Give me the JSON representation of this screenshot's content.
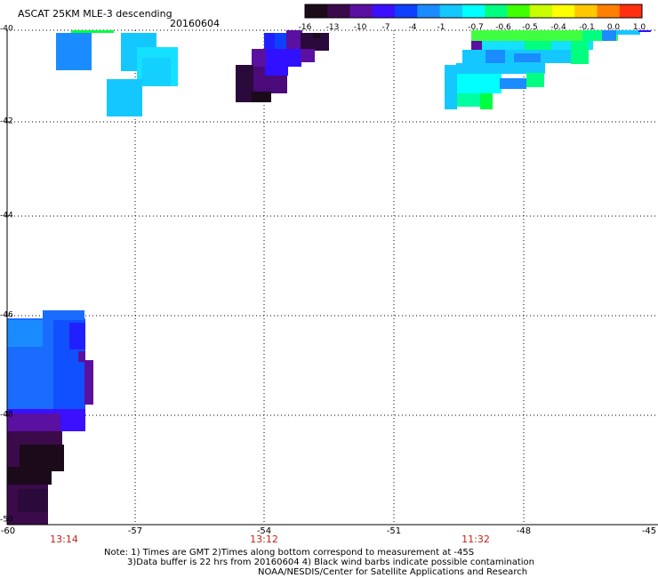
{
  "header": {
    "title": "ASCAT 25KM MLE-3 descending",
    "date": "20160604"
  },
  "colorbar": {
    "labels": [
      "-16",
      "-13",
      "-10",
      "-7",
      "-4",
      "-1",
      "-0.7",
      "-0.6",
      "-0.5",
      "-0.4",
      "-0.1",
      "0.0",
      "1.0"
    ],
    "colors": [
      "#1a0a1a",
      "#3b0a4a",
      "#5a10a0",
      "#3a10ff",
      "#1040ff",
      "#1a8cff",
      "#14c8ff",
      "#00ffff",
      "#00ff80",
      "#40ff00",
      "#c8ff00",
      "#ffff00",
      "#ffc800",
      "#ff8000",
      "#ff3010"
    ]
  },
  "map": {
    "lat_labels": [
      "-40",
      "-42",
      "-44",
      "-46",
      "-48",
      "-50"
    ],
    "lon_labels": [
      "-60",
      "-57",
      "-54",
      "-51",
      "-48",
      "-45"
    ],
    "pass_times": [
      "13:14",
      "13:12",
      "11:32"
    ]
  },
  "notes": {
    "line1": "Note: 1) Times are GMT 2)Times along bottom correspond to measurement at -45S",
    "line2": "3)Data buffer is 22 hrs from 20160604 4) Black wind barbs indicate possible contamination",
    "line3": "NOAA/NESDIS/Center for Satellite Applications and Research"
  }
}
